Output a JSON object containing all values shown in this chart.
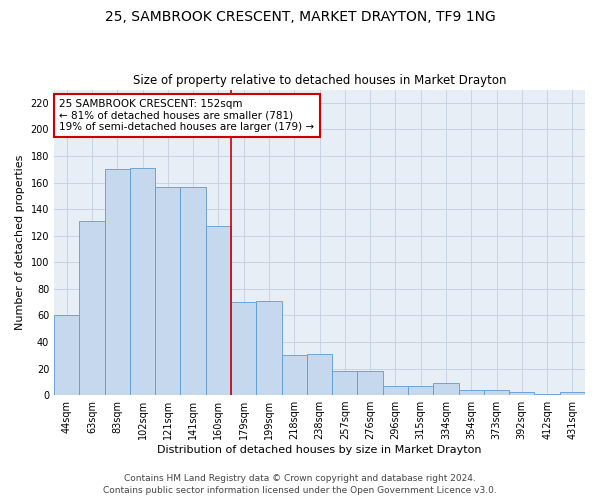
{
  "title": "25, SAMBROOK CRESCENT, MARKET DRAYTON, TF9 1NG",
  "subtitle": "Size of property relative to detached houses in Market Drayton",
  "xlabel": "Distribution of detached houses by size in Market Drayton",
  "ylabel": "Number of detached properties",
  "categories": [
    "44sqm",
    "63sqm",
    "83sqm",
    "102sqm",
    "121sqm",
    "141sqm",
    "160sqm",
    "179sqm",
    "199sqm",
    "218sqm",
    "238sqm",
    "257sqm",
    "276sqm",
    "296sqm",
    "315sqm",
    "334sqm",
    "354sqm",
    "373sqm",
    "392sqm",
    "412sqm",
    "431sqm"
  ],
  "values": [
    60,
    131,
    170,
    171,
    157,
    157,
    127,
    70,
    71,
    30,
    31,
    18,
    18,
    7,
    7,
    9,
    4,
    4,
    2,
    1,
    2
  ],
  "bar_color": "#c5d8ed",
  "bar_edge_color": "#5b9bd5",
  "grid_color": "#c8d4e3",
  "background_color": "#e8eef5",
  "annotation_box_color": "#ffffff",
  "annotation_border_color": "#cc0000",
  "vline_color": "#cc0000",
  "annotation_text_line1": "25 SAMBROOK CRESCENT: 152sqm",
  "annotation_text_line2": "← 81% of detached houses are smaller (781)",
  "annotation_text_line3": "19% of semi-detached houses are larger (179) →",
  "vline_position": 6.5,
  "ylim": [
    0,
    230
  ],
  "yticks": [
    0,
    20,
    40,
    60,
    80,
    100,
    120,
    140,
    160,
    180,
    200,
    220
  ],
  "footer_line1": "Contains HM Land Registry data © Crown copyright and database right 2024.",
  "footer_line2": "Contains public sector information licensed under the Open Government Licence v3.0.",
  "title_fontsize": 10,
  "subtitle_fontsize": 8.5,
  "tick_fontsize": 7,
  "label_fontsize": 8,
  "annotation_fontsize": 7.5,
  "footer_fontsize": 6.5
}
